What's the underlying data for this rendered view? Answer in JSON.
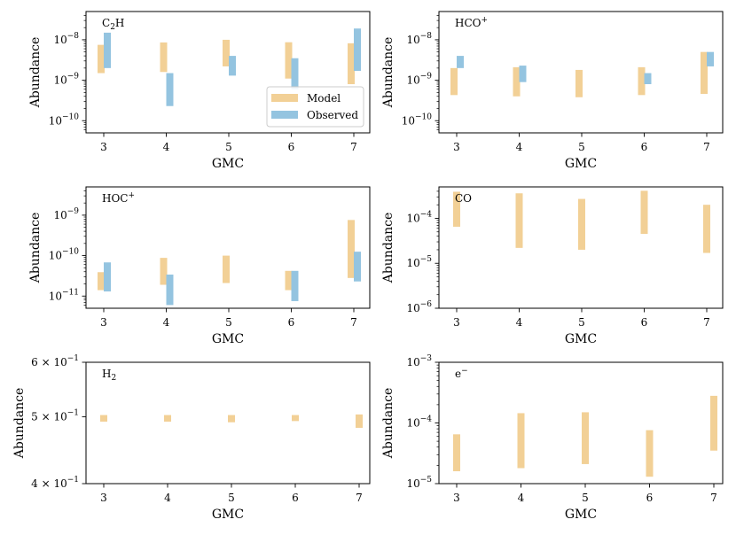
{
  "colors": {
    "model": "#f2d096",
    "observed": "#94c4e0"
  },
  "chart_data": [
    {
      "type": "bar",
      "label": "C",
      "label_sub": "2",
      "label_tail": "H",
      "label_sup": "",
      "scale": "log",
      "ylim": [
        5e-11,
        5e-08
      ],
      "yticks": [
        {
          "value": 1e-08,
          "base": "10",
          "exp": "−8"
        },
        {
          "value": 1e-09,
          "base": "10",
          "exp": "−9"
        },
        {
          "value": 1e-10,
          "base": "10",
          "exp": "−10"
        }
      ],
      "xlabel": "GMC",
      "ylabel": "Abundance",
      "categories": [
        "3",
        "4",
        "5",
        "6",
        "7"
      ],
      "series": [
        {
          "name": "Model",
          "ranges": [
            [
              1.5e-09,
              7.5e-09
            ],
            [
              1.6e-09,
              8.6e-09
            ],
            [
              2.2e-09,
              1e-08
            ],
            [
              1.1e-09,
              8.7e-09
            ],
            [
              8e-10,
              8.2e-09
            ]
          ]
        },
        {
          "name": "Observed",
          "ranges": [
            [
              2e-09,
              1.5e-08
            ],
            [
              2.3e-10,
              1.5e-09
            ],
            [
              1.3e-09,
              4e-09
            ],
            [
              6e-10,
              3.5e-09
            ],
            [
              1.7e-09,
              1.9e-08
            ]
          ]
        }
      ],
      "legend": {
        "placement": "lower-right",
        "entries": [
          "Model",
          "Observed"
        ]
      }
    },
    {
      "type": "bar",
      "label": "HCO",
      "label_sub": "",
      "label_tail": "",
      "label_sup": "+",
      "scale": "log",
      "ylim": [
        5e-11,
        5e-08
      ],
      "yticks": [
        {
          "value": 1e-08,
          "base": "10",
          "exp": "−8"
        },
        {
          "value": 1e-09,
          "base": "10",
          "exp": "−9"
        },
        {
          "value": 1e-10,
          "base": "10",
          "exp": "−10"
        }
      ],
      "xlabel": "GMC",
      "ylabel": "Abundance",
      "categories": [
        "3",
        "4",
        "5",
        "6",
        "7"
      ],
      "series": [
        {
          "name": "Model",
          "ranges": [
            [
              4.3e-10,
              2e-09
            ],
            [
              4e-10,
              2.1e-09
            ],
            [
              3.8e-10,
              1.8e-09
            ],
            [
              4.3e-10,
              2.1e-09
            ],
            [
              4.6e-10,
              5e-09
            ]
          ]
        },
        {
          "name": "Observed",
          "ranges": [
            [
              2e-09,
              4e-09
            ],
            [
              9e-10,
              2.3e-09
            ],
            null,
            [
              8e-10,
              1.5e-09
            ],
            [
              2.2e-09,
              5e-09
            ]
          ]
        }
      ]
    },
    {
      "type": "bar",
      "label": "HOC",
      "label_sub": "",
      "label_tail": "",
      "label_sup": "+",
      "scale": "log",
      "ylim": [
        5e-12,
        5e-09
      ],
      "yticks": [
        {
          "value": 1e-09,
          "base": "10",
          "exp": "−9"
        },
        {
          "value": 1e-10,
          "base": "10",
          "exp": "−10"
        },
        {
          "value": 1e-11,
          "base": "10",
          "exp": "−11"
        }
      ],
      "xlabel": "GMC",
      "ylabel": "Abundance",
      "categories": [
        "3",
        "4",
        "5",
        "6",
        "7"
      ],
      "series": [
        {
          "name": "Model",
          "ranges": [
            [
              1.4e-11,
              3.9e-11
            ],
            [
              1.9e-11,
              8.8e-11
            ],
            [
              2.1e-11,
              1e-10
            ],
            [
              1.4e-11,
              4.2e-11
            ],
            [
              2.8e-11,
              7.6e-10
            ]
          ]
        },
        {
          "name": "Observed",
          "ranges": [
            [
              1.3e-11,
              6.8e-11
            ],
            [
              6e-12,
              3.4e-11
            ],
            null,
            [
              7.5e-12,
              4.2e-11
            ],
            [
              2.3e-11,
              1.25e-10
            ]
          ]
        }
      ]
    },
    {
      "type": "bar",
      "label": "CO",
      "label_sub": "",
      "label_tail": "",
      "label_sup": "",
      "scale": "log",
      "ylim": [
        1e-06,
        0.0005
      ],
      "yticks": [
        {
          "value": 0.0001,
          "base": "10",
          "exp": "−4"
        },
        {
          "value": 1e-05,
          "base": "10",
          "exp": "−5"
        },
        {
          "value": 1e-06,
          "base": "10",
          "exp": "−6"
        }
      ],
      "xlabel": "GMC",
      "ylabel": "Abundance",
      "categories": [
        "3",
        "4",
        "5",
        "6",
        "7"
      ],
      "series": [
        {
          "name": "Model",
          "ranges": [
            [
              6.5e-05,
              0.00039
            ],
            [
              2.2e-05,
              0.00036
            ],
            [
              2e-05,
              0.00027
            ],
            [
              4.5e-05,
              0.00041
            ],
            [
              1.7e-05,
              0.0002
            ]
          ]
        }
      ]
    },
    {
      "type": "bar",
      "label": "H",
      "label_sub": "2",
      "label_tail": "",
      "label_sup": "",
      "scale": "log",
      "ylim": [
        0.4,
        0.6
      ],
      "yticks": [
        {
          "value": 0.6,
          "base": "6 × 10",
          "exp": "−1"
        },
        {
          "value": 0.5,
          "base": "5 × 10",
          "exp": "−1"
        },
        {
          "value": 0.4,
          "base": "4 × 10",
          "exp": "−1"
        }
      ],
      "xlabel": "GMC",
      "ylabel": "Abundance",
      "categories": [
        "3",
        "4",
        "5",
        "6",
        "7"
      ],
      "series": [
        {
          "name": "Model",
          "ranges": [
            [
              0.492,
              0.503
            ],
            [
              0.492,
              0.503
            ],
            [
              0.491,
              0.503
            ],
            [
              0.493,
              0.503
            ],
            [
              0.482,
              0.504
            ]
          ]
        }
      ]
    },
    {
      "type": "bar",
      "label": "e",
      "label_sub": "",
      "label_tail": "",
      "label_sup": "−",
      "scale": "log",
      "ylim": [
        1e-05,
        0.001
      ],
      "yticks": [
        {
          "value": 0.001,
          "base": "10",
          "exp": "−3"
        },
        {
          "value": 0.0001,
          "base": "10",
          "exp": "−4"
        },
        {
          "value": 1e-05,
          "base": "10",
          "exp": "−5"
        }
      ],
      "xlabel": "GMC",
      "ylabel": "Abundance",
      "categories": [
        "3",
        "4",
        "5",
        "6",
        "7"
      ],
      "series": [
        {
          "name": "Model",
          "ranges": [
            [
              1.6e-05,
              6.5e-05
            ],
            [
              1.8e-05,
              0.000145
            ],
            [
              2.1e-05,
              0.00015
            ],
            [
              1.3e-05,
              7.6e-05
            ],
            [
              3.5e-05,
              0.00028
            ]
          ]
        }
      ]
    }
  ]
}
